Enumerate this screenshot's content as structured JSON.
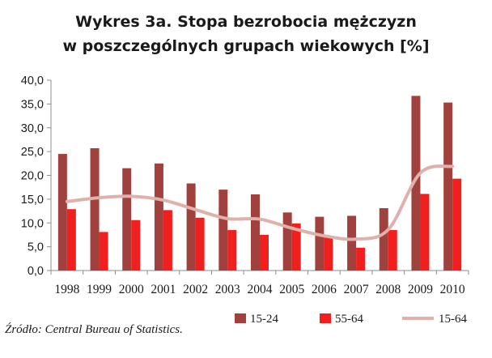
{
  "chart_data": {
    "type": "bar",
    "title_line1": "Wykres 3a. Stopa bezrobocia mężczyzn",
    "title_line2": "w poszczególnych grupach wiekowych [%]",
    "categories": [
      "1998",
      "1999",
      "2000",
      "2001",
      "2002",
      "2003",
      "2004",
      "2005",
      "2006",
      "2007",
      "2008",
      "2009",
      "2010"
    ],
    "series": [
      {
        "name": "15-24",
        "kind": "bar",
        "color": "#a0413d",
        "values": [
          24.5,
          25.7,
          21.5,
          22.5,
          18.3,
          17.0,
          16.0,
          12.2,
          11.3,
          11.5,
          13.1,
          36.7,
          35.3
        ]
      },
      {
        "name": "55-64",
        "kind": "bar",
        "color": "#f21f1f",
        "values": [
          12.9,
          8.1,
          10.6,
          12.7,
          11.1,
          8.5,
          7.5,
          9.9,
          7.2,
          4.8,
          8.5,
          16.1,
          19.3
        ]
      },
      {
        "name": "15-64",
        "kind": "line",
        "color": "#e0b0aa",
        "values": [
          14.5,
          15.3,
          15.6,
          14.8,
          12.8,
          10.9,
          10.8,
          8.9,
          7.3,
          6.6,
          8.6,
          20.5,
          21.9
        ]
      }
    ],
    "ylim": [
      0,
      40
    ],
    "yticks": [
      "0,0",
      "5,0",
      "10,0",
      "15,0",
      "20,0",
      "25,0",
      "30,0",
      "35,0",
      "40,0"
    ],
    "grid": false,
    "legend_position": "bottom-right",
    "source": "Źródło: Central Bureau of Statistics."
  }
}
